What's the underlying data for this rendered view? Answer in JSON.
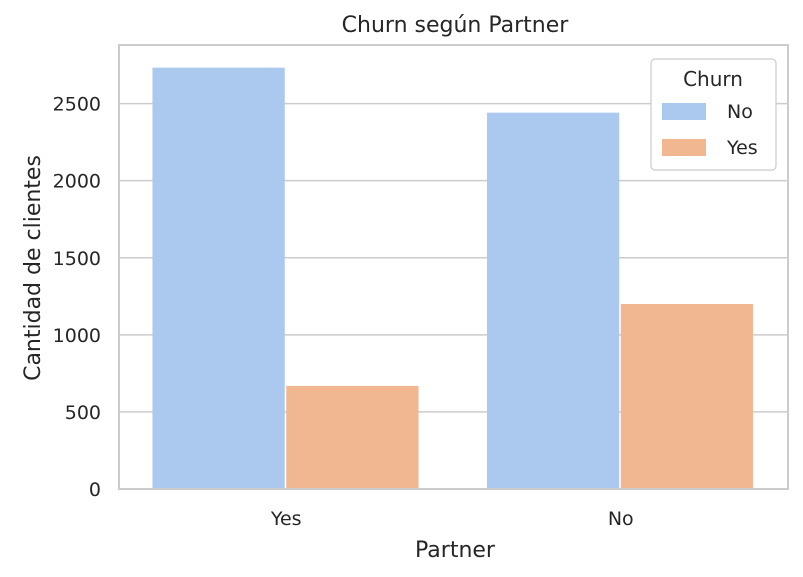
{
  "chart_data": {
    "type": "bar",
    "title": "Churn según Partner",
    "xlabel": "Partner",
    "ylabel": "Cantidad de clientes",
    "categories": [
      "Yes",
      "No"
    ],
    "series": [
      {
        "name": "No",
        "values": [
          2733,
          2441
        ],
        "color": "#abc9ee"
      },
      {
        "name": "Yes",
        "values": [
          669,
          1200
        ],
        "color": "#f0b791"
      }
    ],
    "ylim": [
      0,
      2880
    ],
    "yticks": [
      0,
      500,
      1000,
      1500,
      2000,
      2500
    ],
    "grid": true,
    "legend": {
      "title": "Churn",
      "placement": "top-right"
    }
  }
}
